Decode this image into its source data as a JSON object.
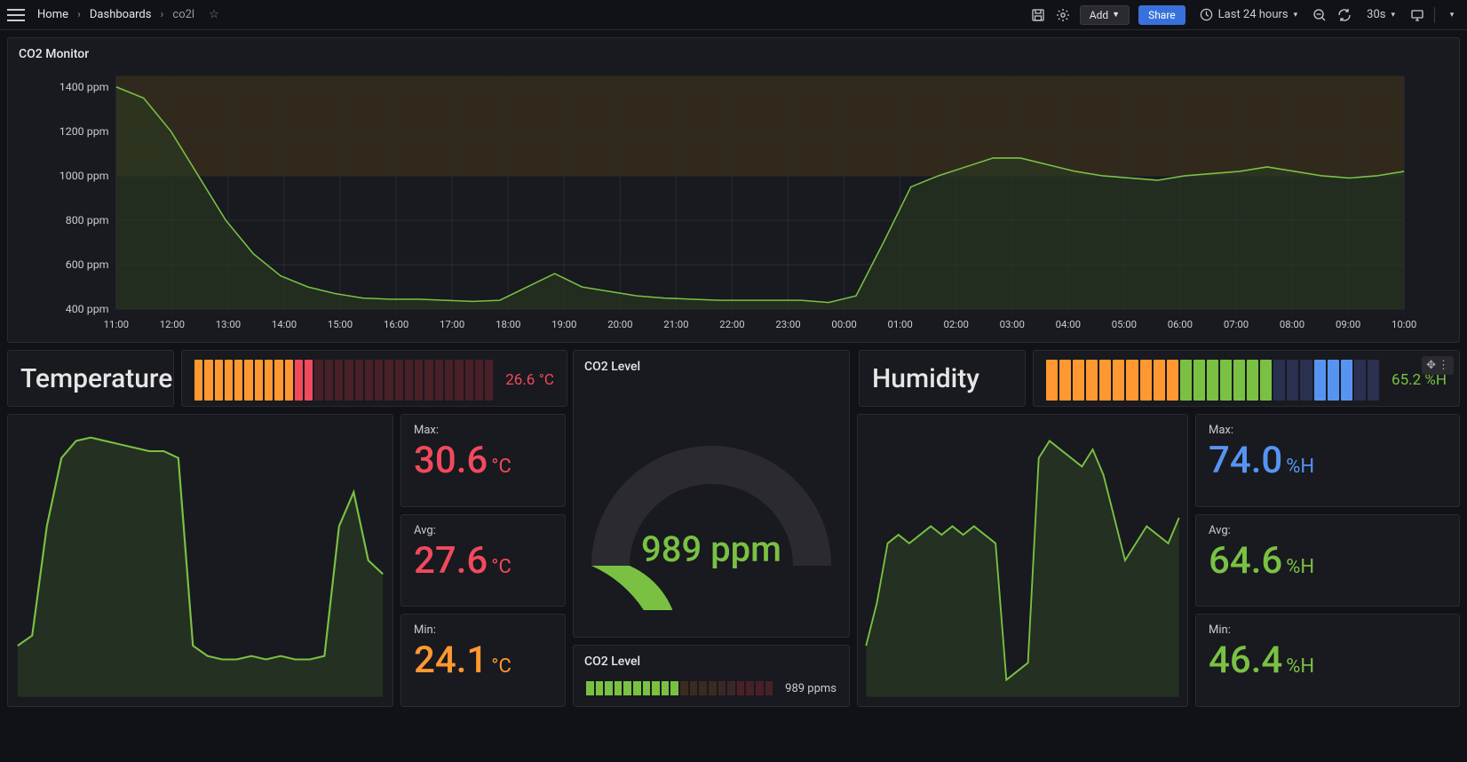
{
  "topbar": {
    "breadcrumb": [
      "Home",
      "Dashboards",
      "co2l"
    ],
    "add_label": "Add",
    "share_label": "Share",
    "time_range": "Last 24 hours",
    "refresh_interval": "30s"
  },
  "colors": {
    "bg": "#111217",
    "panel": "#181a1f",
    "grid": "#2a2a30",
    "green": "#7ac143",
    "orange": "#ff9830",
    "red": "#f2495c",
    "blue": "#5794f2",
    "text": "#cccccc",
    "text_dim": "#888888",
    "warn_band": "#4a3a1a"
  },
  "co2_chart": {
    "title": "CO2 Monitor",
    "y_ticks": [
      "400 ppm",
      "600 ppm",
      "800 ppm",
      "1000 ppm",
      "1200 ppm",
      "1400 ppm"
    ],
    "y_min": 400,
    "y_max": 1450,
    "x_labels": [
      "11:00",
      "12:00",
      "13:00",
      "14:00",
      "15:00",
      "16:00",
      "17:00",
      "18:00",
      "19:00",
      "20:00",
      "21:00",
      "22:00",
      "23:00",
      "00:00",
      "01:00",
      "02:00",
      "03:00",
      "04:00",
      "05:00",
      "06:00",
      "07:00",
      "08:00",
      "09:00",
      "10:00"
    ],
    "warn_threshold": 1000,
    "series": [
      1400,
      1350,
      1200,
      1000,
      800,
      650,
      550,
      500,
      470,
      450,
      445,
      445,
      440,
      435,
      440,
      500,
      560,
      500,
      480,
      460,
      450,
      445,
      440,
      440,
      440,
      440,
      430,
      460,
      700,
      950,
      1000,
      1040,
      1080,
      1080,
      1050,
      1020,
      1000,
      990,
      980,
      1000,
      1010,
      1020,
      1040,
      1020,
      1000,
      990,
      1000,
      1020
    ],
    "line_color": "#7ac143",
    "fill_color": "#2a3a22"
  },
  "temperature": {
    "title": "Temperature",
    "bar_value": "26.6 °C",
    "bar_value_color": "#f2495c",
    "bars": {
      "active": 12,
      "total": 30,
      "active_colors": [
        "#ff9830",
        "#ff9830",
        "#ff9830",
        "#ff9830",
        "#ff9830",
        "#ff9830",
        "#ff9830",
        "#ff9830",
        "#ff9830",
        "#ff9830",
        "#f2495c",
        "#f2495c"
      ],
      "inactive_color": "#4a2028"
    },
    "stats": {
      "max": {
        "label": "Max:",
        "value": "30.6",
        "unit": "°C",
        "color": "#f2495c"
      },
      "avg": {
        "label": "Avg:",
        "value": "27.6",
        "unit": "°C",
        "color": "#f2495c"
      },
      "min": {
        "label": "Min:",
        "value": "24.1",
        "unit": "°C",
        "color": "#ff9830"
      }
    },
    "mini": {
      "series": [
        24.5,
        24.8,
        28,
        30,
        30.5,
        30.6,
        30.5,
        30.4,
        30.3,
        30.2,
        30.2,
        30,
        24.5,
        24.2,
        24.1,
        24.1,
        24.2,
        24.1,
        24.2,
        24.1,
        24.1,
        24.2,
        28,
        29,
        27,
        26.6
      ],
      "y_min": 23,
      "y_max": 31,
      "line_color": "#7ac143",
      "fill_color": "#2a3a22"
    }
  },
  "humidity": {
    "title": "Humidity",
    "bar_value": "65.2 %H",
    "bar_value_color": "#7ac143",
    "bars": {
      "total": 25,
      "colors": [
        "#ff9830",
        "#ff9830",
        "#ff9830",
        "#ff9830",
        "#ff9830",
        "#ff9830",
        "#ff9830",
        "#ff9830",
        "#ff9830",
        "#ff9830",
        "#7ac143",
        "#7ac143",
        "#7ac143",
        "#7ac143",
        "#7ac143",
        "#7ac143",
        "#7ac143",
        "#2a3050",
        "#2a3050",
        "#2a3050",
        "#5794f2",
        "#5794f2",
        "#5794f2",
        "#2a3050",
        "#2a3050"
      ]
    },
    "stats": {
      "max": {
        "label": "Max:",
        "value": "74.0",
        "unit": "%H",
        "color": "#5794f2"
      },
      "avg": {
        "label": "Avg:",
        "value": "64.6",
        "unit": "%H",
        "color": "#7ac143"
      },
      "min": {
        "label": "Min:",
        "value": "46.4",
        "unit": "%H",
        "color": "#7ac143"
      }
    },
    "mini": {
      "series": [
        50,
        55,
        62,
        63,
        62,
        63,
        64,
        63,
        64,
        63,
        64,
        63,
        62,
        46,
        47,
        48,
        72,
        74,
        73,
        72,
        71,
        73,
        70,
        65,
        60,
        62,
        64,
        63,
        62,
        65
      ],
      "y_min": 44,
      "y_max": 76,
      "line_color": "#7ac143",
      "fill_color": "#2a3a22"
    }
  },
  "co2_gauge": {
    "title": "CO2 Level",
    "value": "989 ppm",
    "value_num": 989,
    "min": 400,
    "max": 2000,
    "arc_color": "#7ac143",
    "track_color": "#2a2a30"
  },
  "co2_bar_bottom": {
    "title": "CO2 Level",
    "value": "989 ppms",
    "bars": {
      "total": 20,
      "active": 10,
      "active_color": "#7ac143",
      "inactive_colors": [
        "#3a2a20",
        "#3a2a20",
        "#3a2a20",
        "#3a2a20",
        "#3a2828",
        "#3a2828",
        "#4a2028",
        "#4a2028",
        "#4a2028",
        "#4a2028"
      ]
    }
  }
}
